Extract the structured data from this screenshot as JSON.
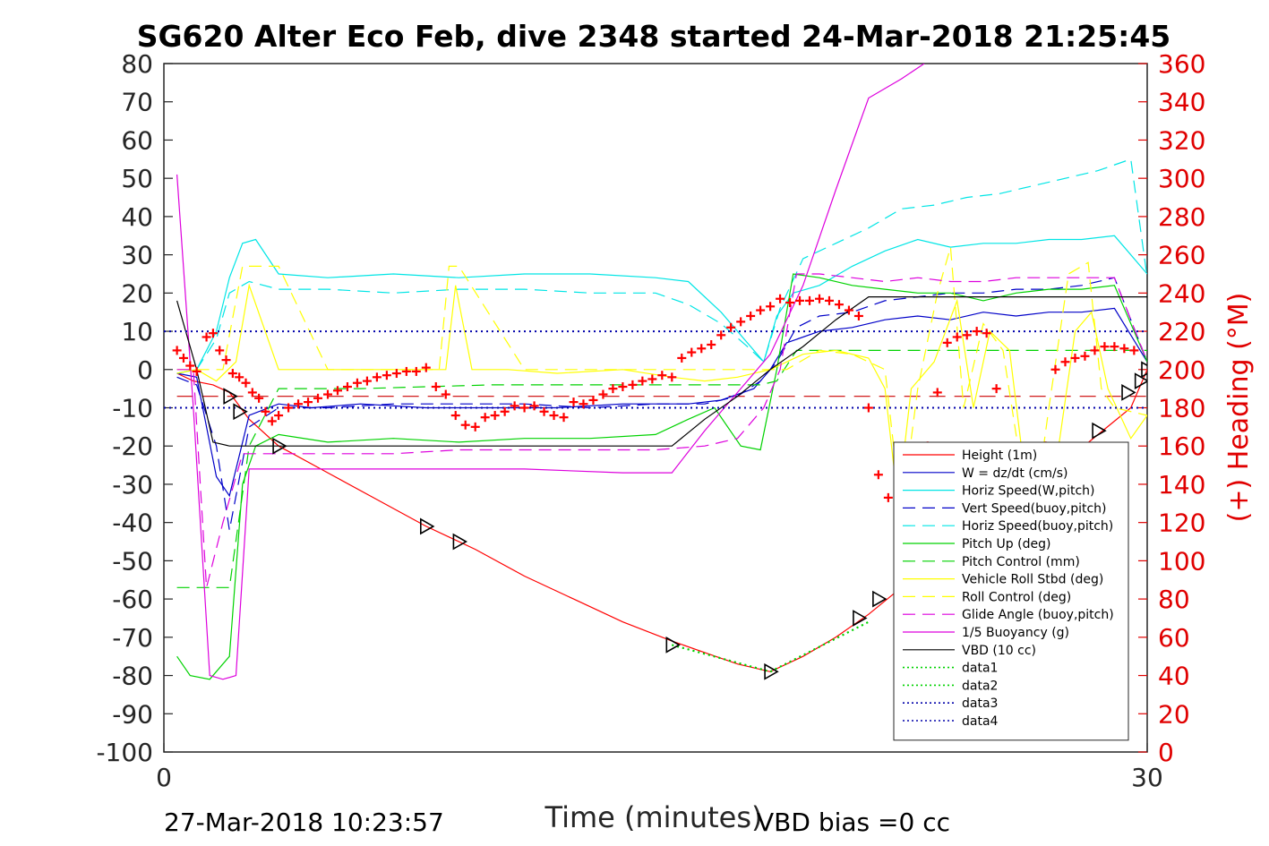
{
  "chart_data": {
    "type": "line",
    "title": "SG620 Alter Eco Feb, dive 2348 started 24-Mar-2018 21:25:45",
    "xlabel": "Time (minutes)",
    "ylabel_right": "(+) Heading (°M)",
    "xlim": [
      0,
      30
    ],
    "ylim": [
      -100,
      80
    ],
    "ylim_right": [
      0,
      360
    ],
    "x_ticks": [
      "0",
      "30"
    ],
    "y_ticks": [
      "80",
      "70",
      "60",
      "50",
      "40",
      "30",
      "20",
      "10",
      "0",
      "-10",
      "-20",
      "-30",
      "-40",
      "-50",
      "-60",
      "-70",
      "-80",
      "-90",
      "-100"
    ],
    "y_ticks_right": [
      "360",
      "340",
      "320",
      "300",
      "280",
      "260",
      "240",
      "220",
      "200",
      "180",
      "160",
      "140",
      "120",
      "100",
      "80",
      "60",
      "40",
      "20",
      "0"
    ],
    "legend_position": "right",
    "footer_left": "27-Mar-2018 10:23:57",
    "footer_right": "VBD bias =0 cc",
    "series": [
      {
        "name": "Height (1m)",
        "color": "#ff0000",
        "dash": "solid",
        "x": [
          0.4,
          0.9,
          1.5,
          2.0,
          2.6,
          3.5,
          5,
          6.5,
          8,
          9.5,
          11,
          12.5,
          14,
          15.5,
          16.5,
          17.5,
          18.5,
          19.5,
          20.5,
          21.5,
          22.5,
          23.5,
          24.5,
          25.5,
          26.5,
          27.5,
          28.5,
          29.5,
          30.0
        ],
        "y": [
          -1,
          -3,
          -4,
          -6,
          -13,
          -20,
          -27,
          -34,
          -41,
          -47,
          -54,
          -60,
          -66,
          -71,
          -74,
          -77,
          -79,
          -75,
          -70,
          -64,
          -57,
          -51,
          -45,
          -38,
          -31,
          -24,
          -17,
          -10,
          0
        ]
      },
      {
        "name": "W = dz/dt (cm/s)",
        "color": "#0000c8",
        "dash": "solid",
        "x": [
          0.4,
          1.0,
          1.6,
          2.0,
          2.6,
          3.5,
          4.5,
          6,
          8,
          10,
          12,
          14,
          16,
          17,
          18,
          18.5,
          19,
          20,
          21,
          22,
          23,
          24,
          25,
          26,
          27,
          28,
          29,
          30
        ],
        "y": [
          -1,
          -2,
          -28,
          -33,
          -12,
          -9,
          -10,
          -9,
          -10,
          -10,
          -10,
          -9,
          -9,
          -8,
          -5,
          0,
          7,
          10,
          11,
          13,
          14,
          13,
          15,
          14,
          15,
          15,
          16,
          2
        ]
      },
      {
        "name": "Horiz Speed(W,pitch)",
        "color": "#00e5e5",
        "dash": "solid",
        "x": [
          0.4,
          1.0,
          1.6,
          2.0,
          2.4,
          2.8,
          3.5,
          5,
          7,
          9,
          11,
          13,
          15,
          16,
          17,
          17.8,
          18.3,
          18.7,
          19.2,
          20,
          21,
          22,
          23,
          24,
          25,
          26,
          27,
          28,
          29,
          30
        ],
        "y": [
          -1,
          0,
          10,
          24,
          33,
          34,
          25,
          24,
          25,
          24,
          25,
          25,
          24,
          23,
          15,
          7,
          2,
          14,
          20,
          22,
          27,
          31,
          34,
          32,
          33,
          33,
          34,
          34,
          35,
          25
        ]
      },
      {
        "name": "Vert Speed(buoy,pitch)",
        "color": "#0000c8",
        "dash": "dash",
        "x": [
          0.4,
          1.0,
          1.6,
          2.0,
          2.6,
          3.5,
          5,
          7,
          9,
          11,
          13,
          15,
          16.5,
          17.5,
          18.2,
          18.7,
          19.3,
          20,
          21,
          22,
          23,
          24,
          25,
          26,
          27,
          28,
          29,
          30
        ],
        "y": [
          -2,
          -4,
          -20,
          -42,
          -15,
          -10,
          -10,
          -9,
          -9,
          -9,
          -10,
          -9,
          -9,
          -7,
          -3,
          2,
          11,
          14,
          15,
          18,
          19,
          20,
          20,
          21,
          21,
          22,
          24,
          2
        ]
      },
      {
        "name": "Horiz Speed(buoy,pitch)",
        "color": "#00e5e5",
        "dash": "dash",
        "x": [
          0.4,
          1.0,
          1.6,
          2.0,
          2.6,
          3.5,
          5,
          7,
          9,
          11,
          13,
          15,
          16,
          17,
          17.8,
          18.3,
          18.8,
          19.5,
          20.5,
          21.5,
          22.5,
          23.5,
          24.5,
          25.5,
          26.5,
          27.5,
          28.5,
          29.5,
          30
        ],
        "y": [
          -1,
          0,
          8,
          20,
          23,
          21,
          21,
          20,
          21,
          21,
          20,
          20,
          17,
          12,
          6,
          2,
          16,
          29,
          33,
          37,
          42,
          43,
          45,
          46,
          48,
          50,
          52,
          55,
          24
        ]
      },
      {
        "name": "Pitch Up (deg)",
        "color": "#00d200",
        "dash": "solid",
        "x": [
          0.4,
          0.8,
          1.4,
          2.0,
          2.4,
          2.8,
          3.5,
          5,
          7,
          9,
          11,
          13,
          15,
          16,
          16.8,
          17.6,
          18.2,
          18.7,
          19.2,
          20,
          21,
          22,
          23,
          24,
          25,
          26,
          27,
          28,
          29,
          30
        ],
        "y": [
          -75,
          -80,
          -81,
          -75,
          -30,
          -20,
          -17,
          -19,
          -18,
          -19,
          -18,
          -18,
          -17,
          -13,
          -10,
          -20,
          -21,
          0,
          25,
          24,
          22,
          21,
          20,
          20,
          18,
          20,
          21,
          21,
          22,
          2
        ]
      },
      {
        "name": "Pitch Control (mm)",
        "color": "#00d200",
        "dash": "dash",
        "x": [
          0.4,
          1.5,
          2.0,
          2.6,
          3.5,
          6,
          10,
          14,
          17,
          18.2,
          18.7,
          19.3,
          22,
          26,
          30
        ],
        "y": [
          -57,
          -57,
          -57,
          -20,
          -5,
          -5,
          -4,
          -4,
          -4,
          -4,
          -3,
          5,
          5,
          5,
          5
        ]
      },
      {
        "name": "Vehicle Roll Stbd (deg)",
        "color": "#ffff00",
        "dash": "solid",
        "x": [
          0.4,
          1.0,
          1.6,
          2.2,
          2.6,
          3.5,
          4.5,
          6,
          7.5,
          8.6,
          8.9,
          9.4,
          10.5,
          12,
          14,
          15.5,
          16.5,
          17.5,
          18.5,
          19.5,
          20.5,
          21.5,
          22.0,
          22.4,
          22.8,
          23.5,
          24.2,
          24.7,
          25.2,
          25.8,
          26.3,
          26.8,
          27.3,
          27.8,
          28.3,
          28.8,
          29.5,
          30
        ],
        "y": [
          -1,
          0,
          -3,
          2,
          22,
          0,
          0,
          0,
          0,
          0,
          22,
          0,
          0,
          -1,
          0,
          -2,
          -3,
          -2,
          0,
          4,
          5,
          3,
          -5,
          -35,
          -5,
          2,
          18,
          -10,
          10,
          5,
          -30,
          -40,
          -20,
          10,
          15,
          -5,
          -18,
          -12
        ]
      },
      {
        "name": "Roll Control (deg)",
        "color": "#ffff00",
        "dash": "dash",
        "x": [
          0.4,
          1.2,
          1.8,
          2.4,
          3.5,
          5,
          7,
          8.4,
          8.7,
          9,
          11,
          13,
          15,
          17,
          18,
          19,
          20,
          21,
          22,
          22.5,
          23,
          23.6,
          24.0,
          24.4,
          25,
          25.6,
          26.2,
          26.6,
          27.0,
          27.6,
          28.2,
          28.6,
          29,
          30
        ],
        "y": [
          0,
          0,
          0,
          27,
          27,
          0,
          0,
          0,
          27,
          27,
          0,
          0,
          0,
          0,
          0,
          0,
          5,
          4,
          0,
          -38,
          -5,
          20,
          32,
          -10,
          12,
          5,
          -28,
          -35,
          -10,
          25,
          28,
          -5,
          -10,
          -12
        ]
      },
      {
        "name": "Glide Angle (buoy,pitch)",
        "color": "#dd00dd",
        "dash": "dash",
        "x": [
          0.4,
          0.9,
          1.3,
          1.8,
          2.4,
          3.5,
          5,
          7,
          9,
          11,
          13,
          15,
          16.5,
          17.5,
          18.3,
          18.8,
          19.3,
          20,
          21,
          22,
          23,
          24,
          25,
          26,
          27,
          28,
          29,
          30
        ],
        "y": [
          0,
          0,
          -57,
          -40,
          -22,
          -22,
          -22,
          -22,
          -21,
          -21,
          -21,
          -21,
          -20,
          -18,
          -10,
          0,
          25,
          25,
          24,
          23,
          24,
          23,
          23,
          24,
          24,
          24,
          24,
          2
        ]
      },
      {
        "name": "1/5 Buoyancy (g)",
        "color": "#dd00dd",
        "dash": "solid",
        "x": [
          0.4,
          0.9,
          1.4,
          1.8,
          2.2,
          2.6,
          3.5,
          5,
          8,
          11,
          14,
          15.5,
          16.5,
          17.5,
          18.5,
          19.5,
          20.5,
          21.5,
          22.5,
          23.2
        ],
        "y": [
          51,
          -10,
          -80,
          -81,
          -80,
          -26,
          -26,
          -26,
          -26,
          -26,
          -27,
          -27,
          -16,
          -6,
          4,
          22,
          47,
          71,
          76,
          80
        ]
      },
      {
        "name": "VBD (10 cc)",
        "color": "#000000",
        "dash": "solid",
        "x": [
          0.4,
          1.0,
          1.5,
          2.0,
          4,
          6,
          8,
          10,
          12,
          14,
          15.5,
          16.5,
          17.5,
          18.5,
          19.5,
          20.5,
          21.5,
          22,
          24,
          26,
          28,
          30
        ],
        "y": [
          18,
          0,
          -19,
          -20,
          -20,
          -20,
          -20,
          -20,
          -20,
          -20,
          -20,
          -13,
          -7,
          0,
          6,
          13,
          19,
          19,
          19,
          19,
          19,
          19
        ]
      },
      {
        "name": "data1",
        "color": "#00d200",
        "dash": "dot",
        "x": [
          15.5,
          18.5,
          21.5
        ],
        "y": [
          -72,
          -79,
          -66
        ]
      },
      {
        "name": "data2",
        "color": "#00d200",
        "dash": "dot",
        "x": [
          15.5,
          18.5,
          21.5
        ],
        "y": [
          -72,
          -79,
          -66
        ]
      },
      {
        "name": "data3",
        "color": "#0000aa",
        "dash": "dot",
        "x": [
          0,
          30
        ],
        "y": [
          10,
          10
        ]
      },
      {
        "name": "data4",
        "color": "#0000aa",
        "dash": "dot",
        "x": [
          0,
          30
        ],
        "y": [
          -10,
          -10
        ]
      }
    ],
    "reference_lines": [
      {
        "color": "#cc0000",
        "dash": "longdash",
        "y": -7,
        "x": [
          0.4,
          30
        ]
      }
    ],
    "heading_points": {
      "color": "#ff0000",
      "marker": "plus",
      "x": [
        0.4,
        0.6,
        0.8,
        1.0,
        1.3,
        1.5,
        1.7,
        1.9,
        2.1,
        2.3,
        2.5,
        2.7,
        2.9,
        3.1,
        3.3,
        3.5,
        3.8,
        4.1,
        4.4,
        4.7,
        5.0,
        5.3,
        5.6,
        5.9,
        6.2,
        6.5,
        6.8,
        7.1,
        7.4,
        7.7,
        8.0,
        8.3,
        8.6,
        8.9,
        9.2,
        9.5,
        9.8,
        10.1,
        10.4,
        10.7,
        11.0,
        11.3,
        11.6,
        11.9,
        12.2,
        12.5,
        12.8,
        13.1,
        13.4,
        13.7,
        14.0,
        14.3,
        14.6,
        14.9,
        15.2,
        15.5,
        15.8,
        16.1,
        16.4,
        16.7,
        17.0,
        17.3,
        17.6,
        17.9,
        18.2,
        18.5,
        18.8,
        19.1,
        19.4,
        19.7,
        20.0,
        20.3,
        20.6,
        20.9,
        21.2,
        21.5,
        21.8,
        22.1,
        22.4,
        22.7,
        23.0,
        23.3,
        23.6,
        23.9,
        24.2,
        24.5,
        24.8,
        25.1,
        25.4,
        25.7,
        26.0,
        26.3,
        26.6,
        26.9,
        27.2,
        27.5,
        27.8,
        28.1,
        28.4,
        28.7,
        29.0,
        29.3,
        29.6
      ],
      "y": [
        210,
        206,
        202,
        199,
        217,
        219,
        210,
        205,
        198,
        196,
        193,
        188,
        185,
        178,
        173,
        176,
        180,
        182,
        183,
        185,
        187,
        189,
        191,
        193,
        194,
        196,
        197,
        198,
        199,
        199,
        201,
        191,
        187,
        176,
        171,
        170,
        175,
        176,
        178,
        181,
        180,
        181,
        178,
        176,
        175,
        183,
        182,
        184,
        187,
        190,
        191,
        192,
        194,
        195,
        197,
        196,
        206,
        209,
        211,
        213,
        218,
        222,
        225,
        228,
        231,
        233,
        237,
        235,
        236,
        236,
        237,
        236,
        234,
        231,
        228,
        180,
        145,
        133,
        123,
        124,
        126,
        160,
        188,
        214,
        217,
        218,
        220,
        219,
        190,
        155,
        145,
        140,
        120,
        160,
        200,
        204,
        206,
        207,
        210,
        212,
        212,
        211,
        210
      ]
    },
    "triangle_markers": {
      "color": "#000000",
      "x": [
        2.0,
        2.3,
        3.5,
        8.0,
        9.0,
        15.5,
        18.5,
        21.2,
        21.8,
        22.5,
        23.0,
        24.0,
        26.3,
        27.5,
        28.5,
        29.4,
        29.8,
        30.0
      ],
      "y": [
        -7,
        -11,
        -20,
        -41,
        -45,
        -72,
        -79,
        -65,
        -60,
        -52,
        -47,
        -36,
        -31,
        -21,
        -16,
        -6,
        -3,
        0
      ]
    }
  }
}
